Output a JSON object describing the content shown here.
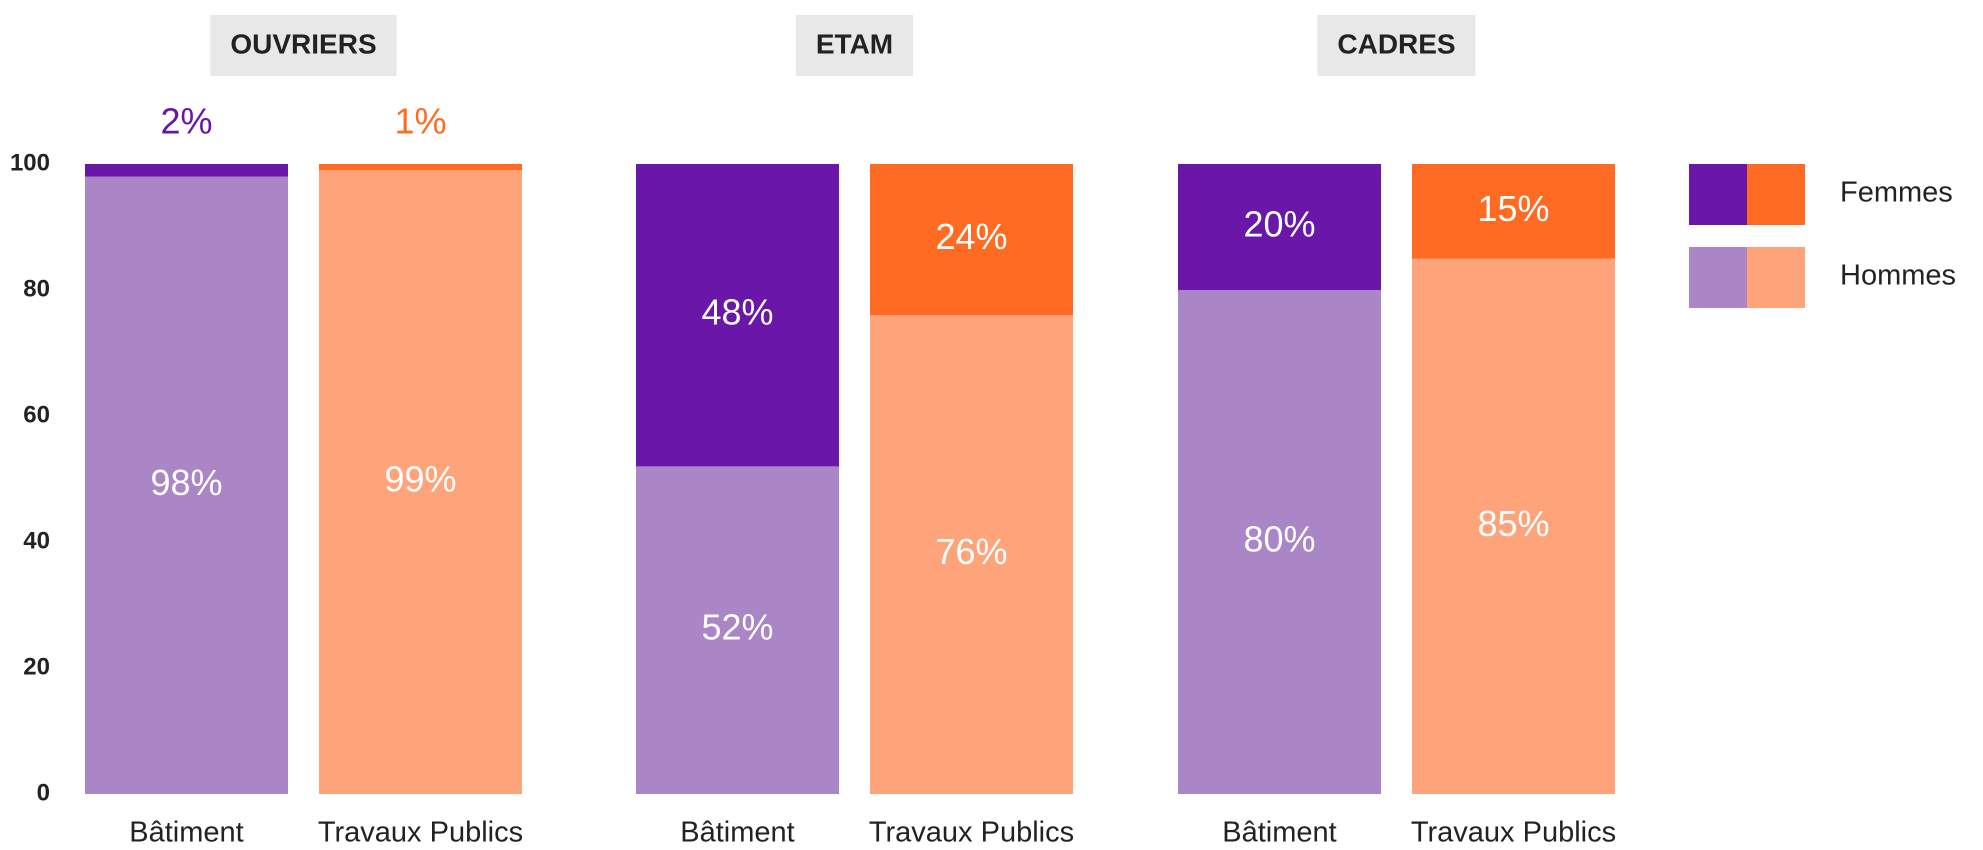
{
  "chart_data": {
    "type": "stacked_bar",
    "groups": [
      {
        "name": "OUVRIERS",
        "categories": [
          "Bâtiment",
          "Travaux Publics"
        ]
      },
      {
        "name": "ETAM",
        "categories": [
          "Bâtiment",
          "Travaux Publics"
        ]
      },
      {
        "name": "CADRES",
        "categories": [
          "Bâtiment",
          "Travaux Publics"
        ]
      }
    ],
    "series": [
      {
        "name": "Hommes",
        "colors": [
          "#ab86c6",
          "#ffa47a"
        ],
        "values": [
          98,
          99,
          52,
          76,
          80,
          85
        ],
        "value_labels": [
          "98%",
          "99%",
          "52%",
          "76%",
          "80%",
          "85%"
        ]
      },
      {
        "name": "Femmes",
        "colors": [
          "#6a16a8",
          "#ff6b22"
        ],
        "values": [
          2,
          1,
          48,
          24,
          20,
          15
        ],
        "value_labels": [
          "2%",
          "1%",
          "48%",
          "24%",
          "20%",
          "15%"
        ]
      }
    ],
    "ylim": [
      0,
      100
    ],
    "yticks": [
      0,
      20,
      40,
      60,
      80,
      100
    ],
    "grid": false
  }
}
